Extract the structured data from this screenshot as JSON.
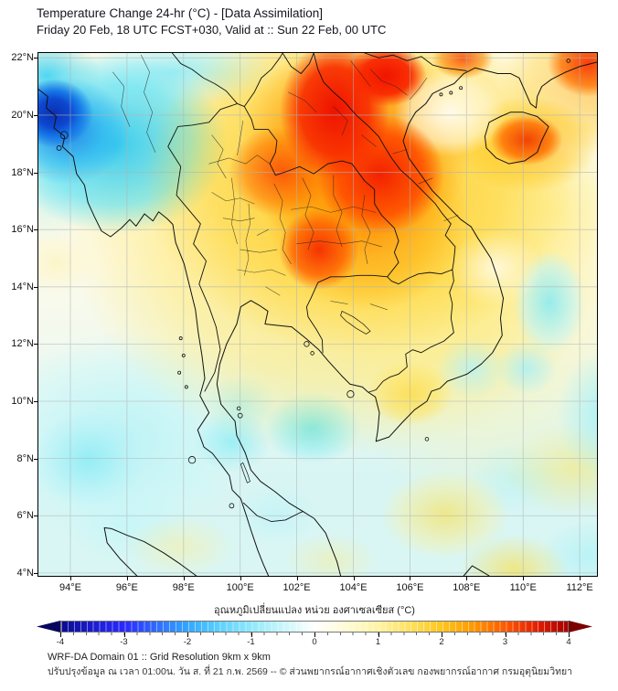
{
  "title": {
    "line1": "Temperature Change 24-hr (°C) - [Data Assimilation]",
    "line2": "Friday 20 Feb, 18 UTC FCST+030, Valid at :: Sun 22 Feb, 00 UTC"
  },
  "map": {
    "lat_labels": [
      "22°N",
      "20°N",
      "18°N",
      "16°N",
      "14°N",
      "12°N",
      "10°N",
      "8°N",
      "6°N",
      "4°N"
    ],
    "lon_labels": [
      "94°E",
      "96°E",
      "98°E",
      "100°E",
      "102°E",
      "104°E",
      "106°E",
      "108°E",
      "110°E",
      "112°E"
    ]
  },
  "colorbar": {
    "label": "อุณหภูมิเปลี่ยนแปลง หน่วย องศาเซลเซียส (°C)",
    "tick_labels": [
      "-4",
      "-3",
      "-2",
      "-1",
      "0",
      "1",
      "2",
      "3",
      "4"
    ],
    "arrow_left": "#06065e",
    "arrow_right": "#7a0000",
    "stops": [
      {
        "value": -4.0,
        "color": "#0b0b8f"
      },
      {
        "value": -3.5,
        "color": "#1c1cd0"
      },
      {
        "value": -3.0,
        "color": "#2929ff"
      },
      {
        "value": -2.5,
        "color": "#2f6bff"
      },
      {
        "value": -2.0,
        "color": "#33a7ff"
      },
      {
        "value": -1.5,
        "color": "#5cd1ff"
      },
      {
        "value": -1.0,
        "color": "#8fe9fb"
      },
      {
        "value": -0.5,
        "color": "#c8f6fb"
      },
      {
        "value": 0.0,
        "color": "#ffffff"
      },
      {
        "value": 0.5,
        "color": "#fffbd5"
      },
      {
        "value": 1.0,
        "color": "#fff3a6"
      },
      {
        "value": 1.5,
        "color": "#ffe160"
      },
      {
        "value": 2.0,
        "color": "#ffc61e"
      },
      {
        "value": 2.5,
        "color": "#ff9800"
      },
      {
        "value": 3.0,
        "color": "#ff5a00"
      },
      {
        "value": 3.5,
        "color": "#e32000"
      },
      {
        "value": 4.0,
        "color": "#a80000"
      }
    ]
  },
  "footer": {
    "line1": "WRF-DA Domain 01 :: Grid Resolution 9km x 9km",
    "line2": "ปรับปรุงข้อมูล ณ เวลา 01:00น. วัน ส. ที่ 21 ก.พ. 2569 -- © ส่วนพยากรณ์อากาศเชิงตัวเลข กองพยากรณ์อากาศ กรมอุตุนิยมวิทยา"
  },
  "chart_data": {
    "type": "heatmap",
    "variable": "24-hour temperature change (°C), WRF-DA data assimilation forecast",
    "region": {
      "lon_min": 93,
      "lon_max": 112.5,
      "lat_min": 4,
      "lat_max": 22
    },
    "scale": {
      "min": -4,
      "max": 4,
      "unit": "°C",
      "palette": "blue-white-red"
    },
    "notable_features": [
      {
        "area": "Northern Laos / NW Vietnam highlands",
        "lon": 103.5,
        "lat": 19.5,
        "value": "+3.5 to +4"
      },
      {
        "area": "Top edge near 104-105E (S China border)",
        "lon": 104.5,
        "lat": 21.9,
        "value": "+3.5"
      },
      {
        "area": "NE Thailand (Loei / Khon Kaen area)",
        "lon": 102.8,
        "lat": 16.4,
        "value": "+3"
      },
      {
        "area": "Hainan Island interior",
        "lon": 110.0,
        "lat": 19.0,
        "value": "+3"
      },
      {
        "area": "Top-right corner, S China coast",
        "lon": 112.0,
        "lat": 21.5,
        "value": "+3"
      },
      {
        "area": "NW corner near Bangladesh/Rakhine coast",
        "lon": 93.5,
        "lat": 20.3,
        "value": "-3.5 to -4"
      },
      {
        "area": "NW quadrant / E Bay of Bengal",
        "lon": 95.5,
        "lat": 19.5,
        "value": "-1 to -2"
      },
      {
        "area": "Gulf of Thailand",
        "lon": 102.3,
        "lat": 10.8,
        "value": "-0.5 to -1"
      },
      {
        "area": "Andaman Sea",
        "lon": 94.5,
        "lat": 9.5,
        "value": "-0.5"
      },
      {
        "area": "Central Thailand / Cambodia",
        "lon": 101.5,
        "lat": 14.5,
        "value": "+0.5 to +1.5"
      },
      {
        "area": "Mekong Delta",
        "lon": 106.0,
        "lat": 10.4,
        "value": "+1.5"
      },
      {
        "area": "Far south seas / N Sumatra",
        "lon": 99.0,
        "lat": 5.0,
        "value": "-0.5 to +0.5"
      }
    ]
  }
}
